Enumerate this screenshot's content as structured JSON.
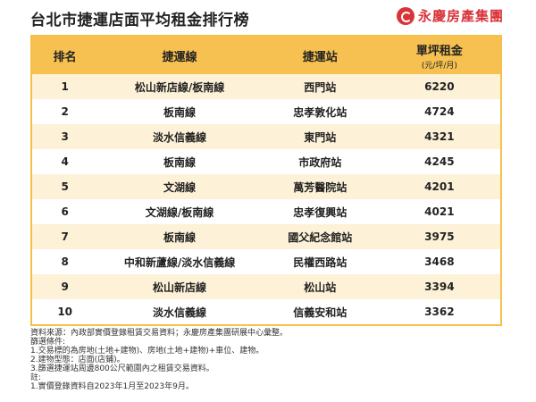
{
  "header": {
    "title": "台北市捷運店面平均租金排行榜",
    "brand": "永慶房產集團",
    "brand_color": "#d9333a",
    "brand_icon": "yungching-logo-icon"
  },
  "table": {
    "columns": [
      "排名",
      "捷運線",
      "捷運站",
      "單坪租金"
    ],
    "rent_unit": "(元/坪/月)",
    "header_color": "#f6c150",
    "stripe_color": "#fdf1d7",
    "rows": [
      {
        "rank": "1",
        "line": "松山新店線/板南線",
        "station": "西門站",
        "rent": "6220"
      },
      {
        "rank": "2",
        "line": "板南線",
        "station": "忠孝敦化站",
        "rent": "4724"
      },
      {
        "rank": "3",
        "line": "淡水信義線",
        "station": "東門站",
        "rent": "4321"
      },
      {
        "rank": "4",
        "line": "板南線",
        "station": "市政府站",
        "rent": "4245"
      },
      {
        "rank": "5",
        "line": "文湖線",
        "station": "萬芳醫院站",
        "rent": "4201"
      },
      {
        "rank": "6",
        "line": "文湖線/板南線",
        "station": "忠孝復興站",
        "rent": "4021"
      },
      {
        "rank": "7",
        "line": "板南線",
        "station": "國父紀念館站",
        "rent": "3975"
      },
      {
        "rank": "8",
        "line": "中和新蘆線/淡水信義線",
        "station": "民權西路站",
        "rent": "3468"
      },
      {
        "rank": "9",
        "line": "松山新店線",
        "station": "松山站",
        "rent": "3394"
      },
      {
        "rank": "10",
        "line": "淡水信義線",
        "station": "信義安和站",
        "rent": "3362"
      }
    ]
  },
  "notes": [
    "資料來源：內政部實價登錄租賃交易資料；永慶房產集團研展中心彙整。",
    "篩選條件:",
    "1.交易標的為房地(土地+建物)、房地(土地+建物)+車位、建物。",
    "2.建物型態：店面(店鋪)。",
    "3.篩選捷運站周邊800公尺範圍內之租賃交易資料。",
    "註:",
    "1.實價登錄資料自2023年1月至2023年9月。"
  ]
}
